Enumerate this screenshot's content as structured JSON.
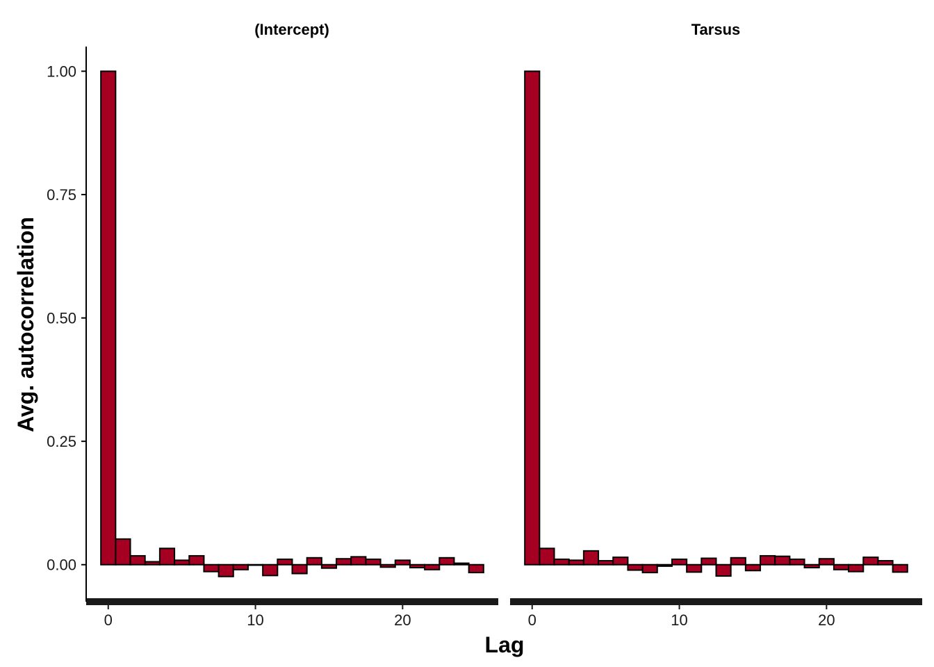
{
  "chart_data": {
    "type": "bar",
    "xlabel": "Lag",
    "ylabel": "Avg.  autocorrelation",
    "xlim": [
      -1.5,
      26.5
    ],
    "ylim": [
      -0.075,
      1.05
    ],
    "x_ticks": [
      0,
      10,
      20
    ],
    "y_ticks": [
      0.0,
      0.25,
      0.5,
      0.75,
      1.0
    ],
    "y_tick_labels": [
      "0.00",
      "0.25",
      "0.50",
      "0.75",
      "1.00"
    ],
    "bar_color": "#a50021",
    "bar_border_color": "#000000",
    "grid": false,
    "facets": [
      {
        "label": "(Intercept)",
        "lags": [
          0,
          1,
          2,
          3,
          4,
          5,
          6,
          7,
          8,
          9,
          10,
          11,
          12,
          13,
          14,
          15,
          16,
          17,
          18,
          19,
          20,
          21,
          22,
          23,
          24,
          25
        ],
        "values": [
          1.0,
          0.052,
          0.018,
          0.006,
          0.033,
          0.009,
          0.018,
          -0.014,
          -0.024,
          -0.01,
          -0.001,
          -0.022,
          0.011,
          -0.018,
          0.014,
          -0.007,
          0.012,
          0.016,
          0.011,
          -0.005,
          0.009,
          -0.006,
          -0.01,
          0.014,
          0.003,
          -0.016
        ]
      },
      {
        "label": "Tarsus",
        "lags": [
          0,
          1,
          2,
          3,
          4,
          5,
          6,
          7,
          8,
          9,
          10,
          11,
          12,
          13,
          14,
          15,
          16,
          17,
          18,
          19,
          20,
          21,
          22,
          23,
          24,
          25
        ],
        "values": [
          1.0,
          0.033,
          0.011,
          0.009,
          0.028,
          0.008,
          0.015,
          -0.011,
          -0.016,
          -0.003,
          0.011,
          -0.015,
          0.013,
          -0.023,
          0.014,
          -0.012,
          0.018,
          0.017,
          0.011,
          -0.006,
          0.012,
          -0.01,
          -0.014,
          0.015,
          0.008,
          -0.015
        ]
      }
    ]
  }
}
